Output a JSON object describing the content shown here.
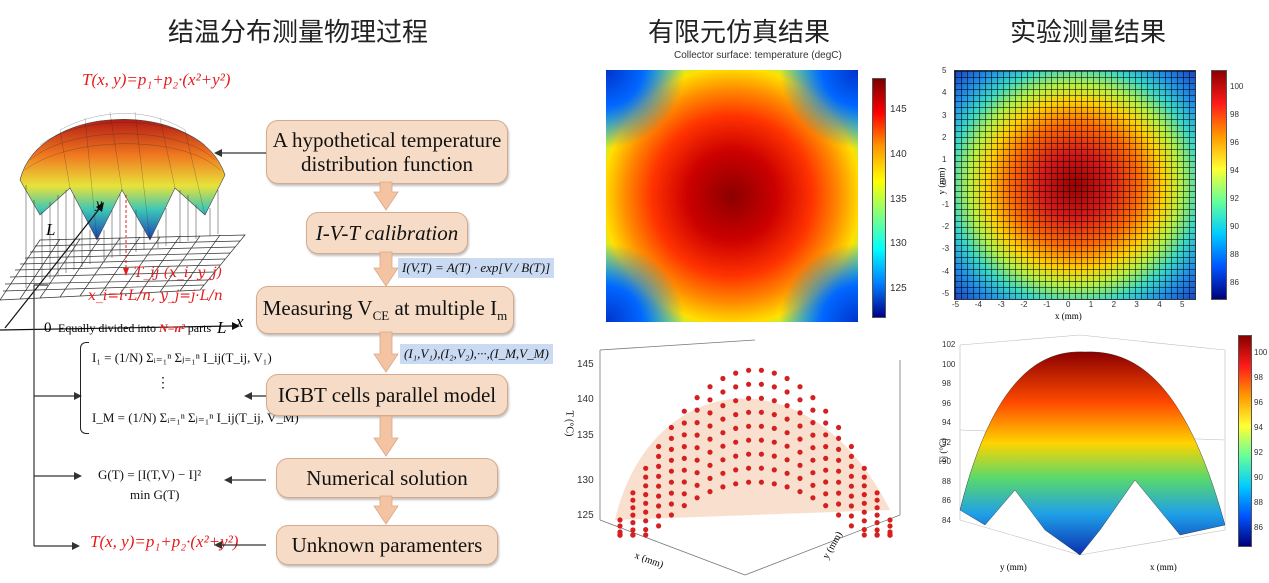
{
  "headings": {
    "left": "结温分布测量物理过程",
    "middle": "有限元仿真结果",
    "right": "实验测量结果"
  },
  "flow": {
    "boxes": [
      {
        "line1": "A hypothetical temperature",
        "line2": "distribution function"
      },
      {
        "line1": "I-V-T calibration"
      },
      {
        "line1": "Measuring V",
        "sub1": "CE",
        "mid": " at multiple I",
        "sub2": "m"
      },
      {
        "line1": "IGBT cells parallel model"
      },
      {
        "line1": "Numerical solution"
      },
      {
        "line1": "Unknown paramenters"
      }
    ],
    "eq_calib": "I(V,T) = A(T) · exp[V / B(T)]",
    "eq_pairs": "(I₁,V₁),(I₂,V₂),···,(I_M,V_M)"
  },
  "left_figure": {
    "formula_top": "T(x, y)=p₁+p₂·(x²+y²)",
    "formula_bottom": "T(x, y)=p₁+p₂·(x²+y²)",
    "axis_y": "y",
    "axis_x": "x",
    "axis_L_left": "L",
    "axis_L_bottom": "L",
    "origin": "0",
    "tij": "T_ij (x_i, y_j)",
    "xi": "x_i=i·L/n, y_j=j·L/n",
    "divided": "Equally divided into ",
    "divided_n": "N=n² ",
    "divided_tail": "parts",
    "model_eq1": "I₁ = (1/N) Σᵢ₌₁ⁿ Σⱼ₌₁ⁿ I_ij(T_ij, V₁)",
    "model_dots": "⋮",
    "model_eqM": "I_M = (1/N) Σᵢ₌₁ⁿ Σⱼ₌₁ⁿ I_ij(T_ij, V_M)",
    "g_eq": "G(T) = [I(T,V) − I]²",
    "g_min": "min  G(T)"
  },
  "sim": {
    "title": "Collector surface: temperature (degC)",
    "colorbar_ticks": [
      "145",
      "140",
      "135",
      "130",
      "125"
    ],
    "scatter_zticks": [
      "145",
      "140",
      "135",
      "130",
      "125"
    ],
    "scatter_zlabel": "T (°C)",
    "scatter_xlabel": "x (mm)",
    "scatter_ylabel": "y (mm)"
  },
  "exp": {
    "heatmap_yticks": [
      "5",
      "4",
      "3",
      "2",
      "1",
      "0",
      "-1",
      "-2",
      "-3",
      "-4",
      "-5"
    ],
    "heatmap_xticks": [
      "-5",
      "-4",
      "-3",
      "-2",
      "-1",
      "0",
      "1",
      "2",
      "3",
      "4",
      "5"
    ],
    "heatmap_xlabel": "x (mm)",
    "heatmap_ylabel": "y (mm)",
    "colorbar_ticks": [
      "100",
      "98",
      "96",
      "94",
      "92",
      "90",
      "88",
      "86"
    ],
    "surf_zticks": [
      "102",
      "100",
      "98",
      "96",
      "94",
      "92",
      "90",
      "88",
      "86",
      "84"
    ],
    "surf_zlabel": "Tj (°C)",
    "surf_xlabel": "y (mm)",
    "surf_ylabel": "x (mm)",
    "surf_colorbar_ticks": [
      "100",
      "98",
      "96",
      "94",
      "92",
      "90",
      "88",
      "86"
    ]
  },
  "colors": {
    "box_fill": "#f6dcc6",
    "box_border": "#d8a98a",
    "eq_fill": "#c9daf2",
    "accent_red": "#e51c1c"
  }
}
